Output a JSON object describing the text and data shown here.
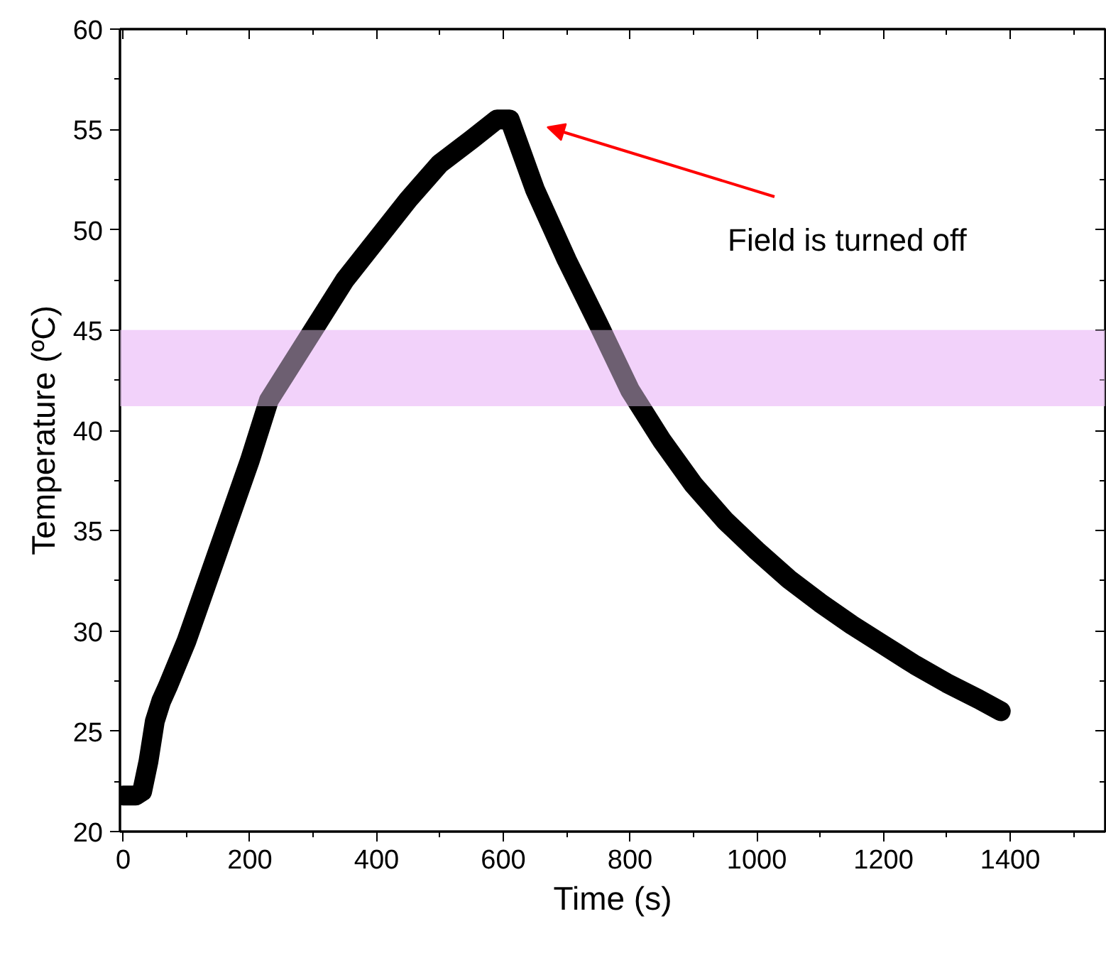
{
  "chart_data": {
    "type": "line",
    "xlabel": "Time (s)",
    "ylabel": "Temperature (ºC)",
    "x": [
      0,
      20,
      30,
      40,
      50,
      60,
      70,
      100,
      150,
      200,
      230,
      260,
      300,
      350,
      400,
      450,
      500,
      550,
      590,
      610,
      650,
      700,
      750,
      800,
      850,
      900,
      950,
      1000,
      1050,
      1100,
      1150,
      1200,
      1250,
      1300,
      1350,
      1385
    ],
    "series": [
      {
        "color": "#000000",
        "values": [
          21.8,
          21.8,
          22.0,
          23.5,
          25.5,
          26.5,
          27.2,
          29.5,
          34.0,
          38.5,
          41.5,
          43.0,
          45.0,
          47.5,
          49.5,
          51.5,
          53.3,
          54.5,
          55.5,
          55.5,
          52.0,
          48.5,
          45.3,
          42.0,
          39.5,
          37.3,
          35.5,
          34.0,
          32.6,
          31.4,
          30.3,
          29.3,
          28.3,
          27.4,
          26.6,
          26.0
        ]
      }
    ],
    "xlim": [
      -5,
      1550
    ],
    "ylim": [
      20,
      60
    ],
    "xticks": [
      0,
      200,
      400,
      600,
      800,
      1000,
      1200,
      1400
    ],
    "yticks": [
      20,
      25,
      30,
      35,
      40,
      45,
      50,
      55,
      60
    ],
    "bands": [
      {
        "axis": "y",
        "from": 41.2,
        "to": 45.0,
        "color": "#f2d2fa"
      }
    ],
    "annotations": [
      "Field is turned off"
    ],
    "grid": false,
    "line_style": "solid"
  }
}
